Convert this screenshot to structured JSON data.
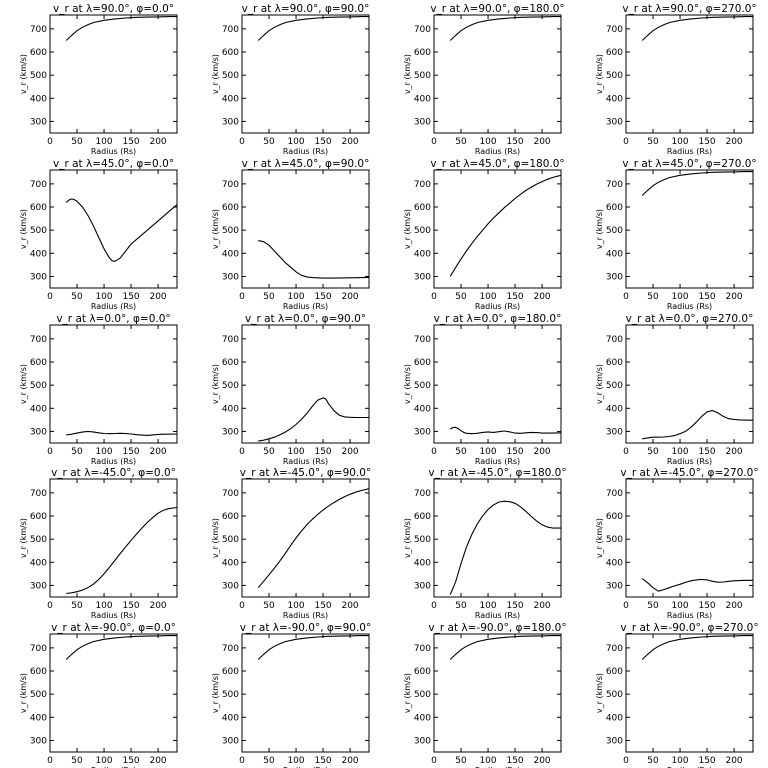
{
  "chart_data": {
    "type": "line",
    "layout": "5x4 grid of line plots",
    "xlabel": "Radius (Rs)",
    "ylabel": "v_r (km/s)",
    "xlim": [
      0,
      235
    ],
    "ylim": [
      250,
      760
    ],
    "xticks": [
      0,
      50,
      100,
      150,
      200
    ],
    "yticks": [
      300,
      400,
      500,
      600,
      700
    ],
    "grid": false,
    "panels": [
      {
        "title": "v_r at λ=90.0°, φ=0.0°",
        "x": [
          30,
          40,
          50,
          60,
          70,
          80,
          100,
          120,
          140,
          160,
          180,
          200,
          220,
          235
        ],
        "y": [
          650,
          672,
          692,
          707,
          718,
          727,
          737,
          743,
          747,
          750,
          751,
          752,
          753,
          753
        ]
      },
      {
        "title": "v_r at λ=90.0°, φ=90.0°",
        "x": [
          30,
          40,
          50,
          60,
          70,
          80,
          100,
          120,
          140,
          160,
          180,
          200,
          220,
          235
        ],
        "y": [
          650,
          672,
          692,
          707,
          718,
          727,
          737,
          743,
          747,
          750,
          751,
          752,
          753,
          753
        ]
      },
      {
        "title": "v_r at λ=90.0°, φ=180.0°",
        "x": [
          30,
          40,
          50,
          60,
          70,
          80,
          100,
          120,
          140,
          160,
          180,
          200,
          220,
          235
        ],
        "y": [
          650,
          672,
          692,
          707,
          718,
          727,
          737,
          743,
          747,
          750,
          751,
          752,
          753,
          753
        ]
      },
      {
        "title": "v_r at λ=90.0°, φ=270.0°",
        "x": [
          30,
          40,
          50,
          60,
          70,
          80,
          100,
          120,
          140,
          160,
          180,
          200,
          220,
          235
        ],
        "y": [
          650,
          672,
          692,
          707,
          718,
          727,
          737,
          743,
          747,
          750,
          751,
          752,
          753,
          753
        ]
      },
      {
        "title": "v_r at λ=45.0°, φ=0.0°",
        "x": [
          30,
          35,
          40,
          45,
          50,
          60,
          70,
          80,
          90,
          100,
          110,
          115,
          120,
          130,
          140,
          150,
          160,
          180,
          200,
          220,
          235
        ],
        "y": [
          620,
          630,
          635,
          632,
          625,
          600,
          565,
          520,
          470,
          420,
          380,
          368,
          365,
          380,
          410,
          440,
          460,
          500,
          540,
          580,
          610
        ]
      },
      {
        "title": "v_r at λ=45.0°, φ=90.0°",
        "x": [
          30,
          40,
          50,
          60,
          70,
          80,
          90,
          100,
          110,
          120,
          130,
          140,
          150,
          170,
          200,
          235
        ],
        "y": [
          455,
          450,
          435,
          410,
          385,
          360,
          340,
          320,
          305,
          298,
          295,
          294,
          293,
          293,
          294,
          296
        ]
      },
      {
        "title": "v_r at λ=45.0°, φ=180.0°",
        "x": [
          30,
          40,
          50,
          60,
          70,
          80,
          90,
          100,
          110,
          120,
          130,
          140,
          150,
          160,
          170,
          180,
          190,
          200,
          210,
          220,
          235
        ],
        "y": [
          300,
          338,
          375,
          410,
          442,
          472,
          500,
          527,
          552,
          575,
          597,
          617,
          637,
          655,
          672,
          686,
          699,
          710,
          720,
          728,
          737
        ]
      },
      {
        "title": "v_r at λ=45.0°, φ=270.0°",
        "x": [
          30,
          40,
          50,
          60,
          70,
          80,
          100,
          120,
          140,
          160,
          180,
          200,
          220,
          235
        ],
        "y": [
          650,
          672,
          692,
          707,
          718,
          727,
          737,
          743,
          747,
          750,
          751,
          752,
          753,
          753
        ]
      },
      {
        "title": "v_r at λ=0.0°, φ=0.0°",
        "x": [
          30,
          40,
          50,
          60,
          70,
          80,
          90,
          100,
          110,
          120,
          130,
          140,
          150,
          160,
          170,
          180,
          190,
          200,
          210,
          220,
          235
        ],
        "y": [
          285,
          288,
          293,
          297,
          300,
          298,
          294,
          291,
          290,
          291,
          292,
          291,
          289,
          286,
          284,
          283,
          285,
          287,
          288,
          288,
          289
        ]
      },
      {
        "title": "v_r at λ=0.0°, φ=90.0°",
        "x": [
          30,
          40,
          50,
          60,
          70,
          80,
          90,
          100,
          110,
          120,
          130,
          140,
          150,
          155,
          160,
          170,
          180,
          190,
          200,
          210,
          220,
          235
        ],
        "y": [
          258,
          262,
          268,
          275,
          285,
          297,
          312,
          330,
          352,
          378,
          408,
          435,
          445,
          440,
          420,
          390,
          370,
          363,
          361,
          360,
          360,
          360
        ]
      },
      {
        "title": "v_r at λ=0.0°, φ=180.0°",
        "x": [
          30,
          35,
          40,
          45,
          50,
          55,
          60,
          70,
          80,
          90,
          100,
          110,
          120,
          130,
          140,
          150,
          160,
          170,
          180,
          190,
          200,
          210,
          220,
          235
        ],
        "y": [
          310,
          317,
          318,
          312,
          303,
          296,
          292,
          290,
          292,
          296,
          298,
          296,
          299,
          302,
          298,
          293,
          292,
          294,
          296,
          295,
          293,
          293,
          293,
          294
        ]
      },
      {
        "title": "v_r at λ=0.0°, φ=270.0°",
        "x": [
          30,
          40,
          50,
          60,
          70,
          80,
          90,
          100,
          110,
          120,
          130,
          140,
          150,
          160,
          170,
          180,
          190,
          200,
          210,
          220,
          235
        ],
        "y": [
          268,
          272,
          275,
          275,
          276,
          278,
          282,
          290,
          300,
          318,
          340,
          365,
          385,
          390,
          380,
          365,
          355,
          352,
          350,
          349,
          348
        ]
      },
      {
        "title": "v_r at λ=-45.0°, φ=0.0°",
        "x": [
          30,
          40,
          50,
          60,
          70,
          80,
          90,
          100,
          110,
          120,
          130,
          140,
          150,
          160,
          170,
          180,
          190,
          200,
          210,
          220,
          235
        ],
        "y": [
          265,
          268,
          273,
          280,
          290,
          305,
          325,
          350,
          378,
          408,
          438,
          467,
          495,
          522,
          548,
          572,
          593,
          612,
          625,
          632,
          637
        ]
      },
      {
        "title": "v_r at λ=-45.0°, φ=90.0°",
        "x": [
          30,
          40,
          50,
          60,
          70,
          80,
          90,
          100,
          110,
          120,
          130,
          140,
          150,
          160,
          170,
          180,
          190,
          200,
          210,
          220,
          235
        ],
        "y": [
          290,
          318,
          346,
          375,
          405,
          438,
          472,
          505,
          535,
          562,
          586,
          607,
          626,
          643,
          658,
          672,
          684,
          694,
          703,
          710,
          718
        ]
      },
      {
        "title": "v_r at λ=-45.0°, φ=180.0°",
        "x": [
          30,
          40,
          50,
          60,
          70,
          80,
          90,
          100,
          110,
          120,
          130,
          140,
          150,
          160,
          170,
          180,
          190,
          200,
          210,
          220,
          235
        ],
        "y": [
          260,
          315,
          395,
          465,
          520,
          565,
          600,
          628,
          648,
          660,
          664,
          662,
          655,
          640,
          620,
          598,
          578,
          562,
          552,
          548,
          548
        ]
      },
      {
        "title": "v_r at λ=-45.0°, φ=270.0°",
        "x": [
          30,
          40,
          50,
          60,
          70,
          80,
          90,
          100,
          110,
          120,
          130,
          140,
          150,
          160,
          170,
          180,
          190,
          200,
          210,
          220,
          235
        ],
        "y": [
          330,
          312,
          290,
          275,
          282,
          290,
          298,
          305,
          313,
          320,
          324,
          326,
          324,
          318,
          314,
          315,
          318,
          320,
          321,
          322,
          322
        ]
      },
      {
        "title": "v_r at λ=-90.0°, φ=0.0°",
        "x": [
          30,
          40,
          50,
          60,
          70,
          80,
          100,
          120,
          140,
          160,
          180,
          200,
          220,
          235
        ],
        "y": [
          650,
          672,
          692,
          707,
          718,
          727,
          737,
          743,
          747,
          750,
          751,
          752,
          753,
          753
        ]
      },
      {
        "title": "v_r at λ=-90.0°, φ=90.0°",
        "x": [
          30,
          40,
          50,
          60,
          70,
          80,
          100,
          120,
          140,
          160,
          180,
          200,
          220,
          235
        ],
        "y": [
          650,
          672,
          692,
          707,
          718,
          727,
          737,
          743,
          747,
          750,
          751,
          752,
          753,
          753
        ]
      },
      {
        "title": "v_r at λ=-90.0°, φ=180.0°",
        "x": [
          30,
          40,
          50,
          60,
          70,
          80,
          100,
          120,
          140,
          160,
          180,
          200,
          220,
          235
        ],
        "y": [
          650,
          672,
          692,
          707,
          718,
          727,
          737,
          743,
          747,
          750,
          751,
          752,
          753,
          753
        ]
      },
      {
        "title": "v_r at λ=-90.0°, φ=270.0°",
        "x": [
          30,
          40,
          50,
          60,
          70,
          80,
          100,
          120,
          140,
          160,
          180,
          200,
          220,
          235
        ],
        "y": [
          650,
          672,
          692,
          707,
          718,
          727,
          737,
          743,
          747,
          750,
          751,
          752,
          753,
          753
        ]
      }
    ]
  }
}
